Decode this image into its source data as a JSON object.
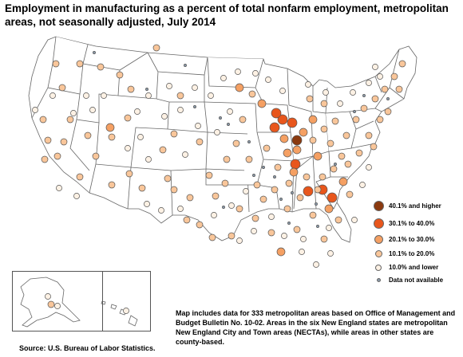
{
  "title": "Employment in manufacturing as a percent of total nonfarm employment, metropolitan areas, not seasonally adjusted, July 2014",
  "legend": [
    {
      "label": "40.1% and higher",
      "color": "#8b3a0f",
      "size": 13
    },
    {
      "label": "30.1% to 40.0%",
      "color": "#e8561c",
      "size": 13
    },
    {
      "label": "20.1% to 30.0%",
      "color": "#f5a063",
      "size": 11
    },
    {
      "label": "10.1% to 20.0%",
      "color": "#f9c69a",
      "size": 9
    },
    {
      "label": "10.0% and lower",
      "color": "#fdf1e4",
      "size": 8
    },
    {
      "label": "Data not available",
      "color": "#8a99a8",
      "size": 5
    }
  ],
  "note": "Map includes data for 333 metropolitan areas based on Office of Management and Budget Bulletin No. 10-02. Areas in the six New England states are metropolitan New England City and Town areas (NECTAs), while areas in other states are county-based.",
  "source": "Source:  U.S. Bureau of Labor Statistics.",
  "colors": {
    "state_border": "#666666",
    "state_fill": "#ffffff"
  }
}
